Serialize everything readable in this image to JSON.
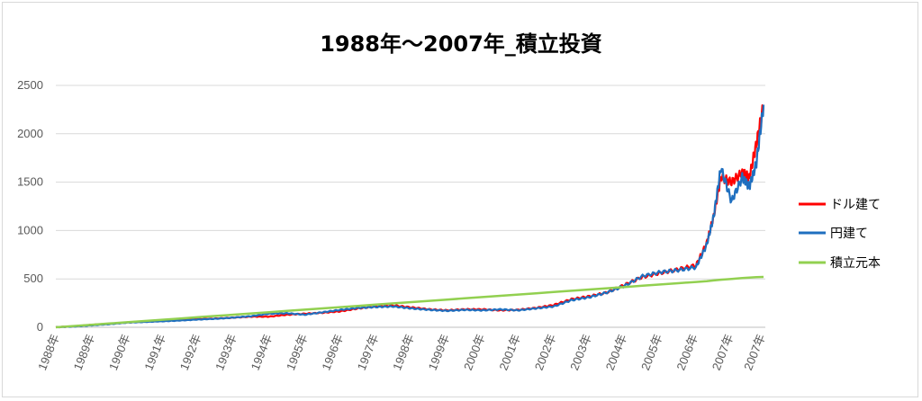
{
  "chart_data": {
    "type": "line",
    "title": "1988年～2007年_積立投資",
    "xlabel": "",
    "ylabel": "",
    "ylim": [
      0,
      2500
    ],
    "y_ticks": [
      "0",
      "500",
      "1000",
      "1500",
      "2000",
      "2500"
    ],
    "x_ticks": [
      "1988年",
      "1989年",
      "1990年",
      "1991年",
      "1992年",
      "1993年",
      "1994年",
      "1995年",
      "1996年",
      "1997年",
      "1998年",
      "1999年",
      "2000年",
      "2001年",
      "2002年",
      "2003年",
      "2004年",
      "2005年",
      "2006年",
      "2007年",
      "2007年"
    ],
    "grid": true,
    "legend_position": "right",
    "x": [
      1988.0,
      1988.5,
      1989.0,
      1989.5,
      1990.0,
      1990.5,
      1991.0,
      1991.5,
      1992.0,
      1992.5,
      1993.0,
      1993.5,
      1994.0,
      1994.5,
      1995.0,
      1995.5,
      1996.0,
      1996.5,
      1997.0,
      1997.5,
      1998.0,
      1998.5,
      1999.0,
      1999.5,
      2000.0,
      2000.5,
      2001.0,
      2001.5,
      2002.0,
      2002.5,
      2003.0,
      2003.5,
      2004.0,
      2004.5,
      2005.0,
      2005.5,
      2006.0,
      2006.3,
      2006.5,
      2006.7,
      2007.0,
      2007.3,
      2007.5,
      2007.7,
      2007.9
    ],
    "series": [
      {
        "name": "ドル建て",
        "color": "#ff0000",
        "values": [
          0,
          10,
          25,
          35,
          50,
          58,
          65,
          75,
          85,
          90,
          100,
          110,
          110,
          130,
          140,
          150,
          165,
          195,
          215,
          225,
          205,
          185,
          175,
          185,
          185,
          175,
          180,
          200,
          230,
          290,
          320,
          360,
          440,
          520,
          560,
          600,
          640,
          870,
          1150,
          1550,
          1500,
          1600,
          1550,
          1900,
          2300
        ]
      },
      {
        "name": "円建て",
        "color": "#1f6fbf",
        "values": [
          0,
          8,
          20,
          32,
          48,
          55,
          62,
          70,
          80,
          88,
          100,
          115,
          140,
          145,
          130,
          155,
          180,
          200,
          210,
          215,
          195,
          180,
          170,
          180,
          175,
          185,
          175,
          195,
          215,
          280,
          310,
          360,
          430,
          530,
          570,
          590,
          620,
          850,
          1150,
          1650,
          1300,
          1550,
          1450,
          1700,
          2300
        ]
      },
      {
        "name": "積立元本",
        "color": "#92d050",
        "values": [
          0,
          13,
          26,
          39,
          52,
          65,
          78,
          91,
          104,
          117,
          130,
          143,
          156,
          169,
          182,
          195,
          208,
          221,
          234,
          247,
          260,
          273,
          286,
          299,
          312,
          325,
          338,
          351,
          364,
          377,
          390,
          403,
          416,
          429,
          442,
          455,
          468,
          476,
          484,
          492,
          500,
          508,
          513,
          518,
          520
        ]
      }
    ]
  }
}
